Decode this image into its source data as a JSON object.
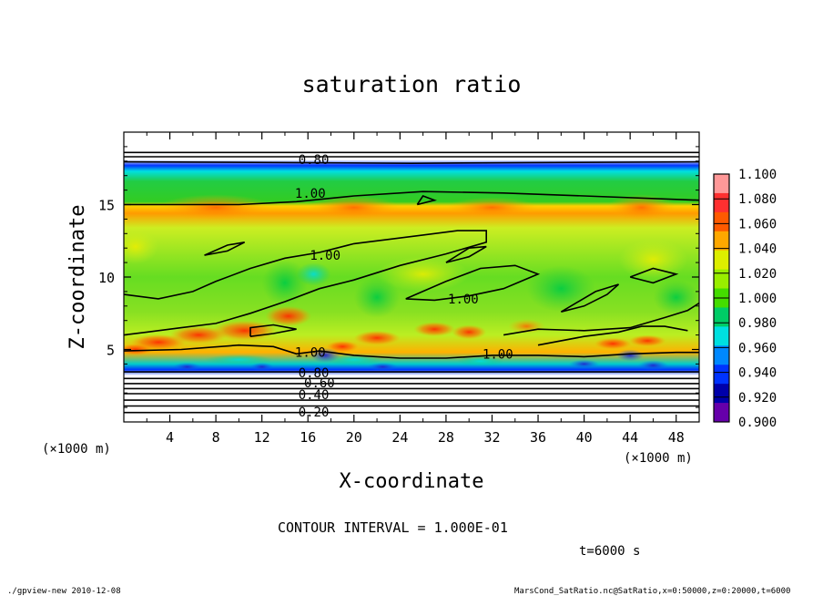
{
  "chart_data": {
    "type": "heatmap",
    "title": "saturation ratio",
    "xlabel": "X-coordinate",
    "ylabel": "Z-coordinate",
    "x_unit": "(×1000 m)",
    "y_unit": "(×1000 m)",
    "xlim": [
      0,
      50
    ],
    "ylim": [
      0,
      20
    ],
    "xticks": [
      "4",
      "8",
      "12",
      "16",
      "20",
      "24",
      "28",
      "32",
      "36",
      "40",
      "44",
      "48"
    ],
    "xtick_values": [
      4,
      8,
      12,
      16,
      20,
      24,
      28,
      32,
      36,
      40,
      44,
      48
    ],
    "yticks": [
      "5",
      "10",
      "15"
    ],
    "ytick_values": [
      5,
      10,
      15
    ],
    "colorbar": {
      "labels": [
        "1.100",
        "1.080",
        "1.060",
        "1.040",
        "1.020",
        "1.000",
        "0.980",
        "0.960",
        "0.940",
        "0.920",
        "0.900"
      ],
      "colors": [
        "#ff9898",
        "#ff3030",
        "#ff5a00",
        "#ffa800",
        "#ddee00",
        "#99ee00",
        "#44dd00",
        "#00cc66",
        "#00e0e0",
        "#0088ff",
        "#0033ff",
        "#0000aa",
        "#6600aa"
      ]
    },
    "contour_labels": [
      {
        "text": "0.80",
        "x": 16.5,
        "y": 18.1
      },
      {
        "text": "1.00",
        "x": 16.2,
        "y": 15.8
      },
      {
        "text": "1.00",
        "x": 17.5,
        "y": 11.5
      },
      {
        "text": "1.00",
        "x": 29.5,
        "y": 8.5
      },
      {
        "text": "1.00",
        "x": 16.2,
        "y": 4.8
      },
      {
        "text": "1.00",
        "x": 32.5,
        "y": 4.7
      },
      {
        "text": "0.80",
        "x": 16.5,
        "y": 3.4
      },
      {
        "text": "0.60",
        "x": 17.0,
        "y": 2.7
      },
      {
        "text": "0.40",
        "x": 16.5,
        "y": 1.9
      },
      {
        "text": "0.20",
        "x": 16.5,
        "y": 0.7
      }
    ]
  },
  "contour_interval": "CONTOUR INTERVAL = 1.000E-01",
  "time_label": "t=6000 s",
  "footer_left": "./gpview-new  2010-12-08",
  "footer_right": "MarsCond_SatRatio.nc@SatRatio,x=0:50000,z=0:20000,t=6000"
}
